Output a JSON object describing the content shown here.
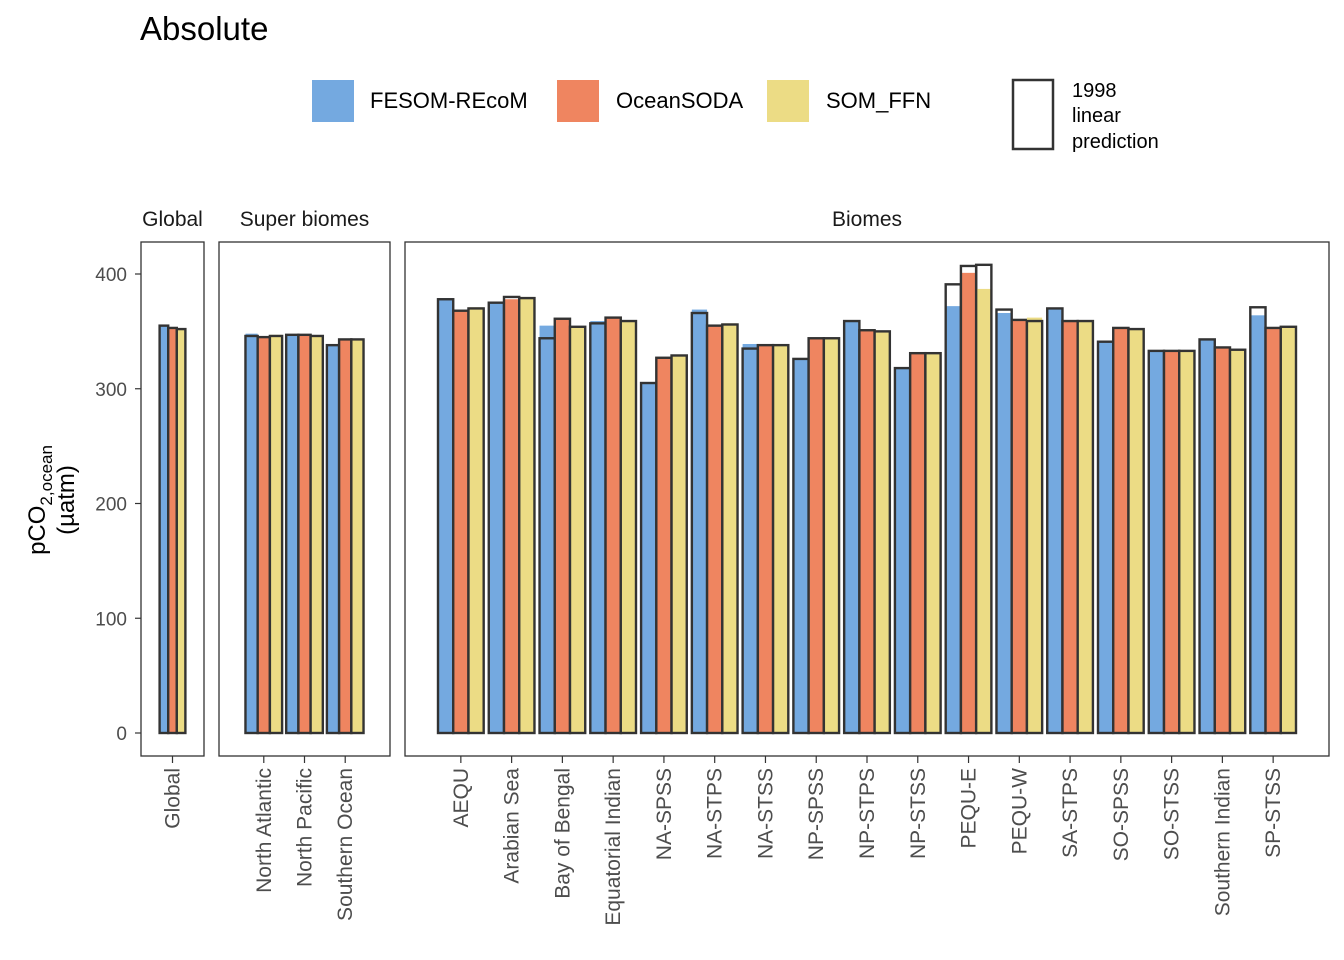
{
  "chart_data": {
    "type": "bar",
    "title": "Absolute",
    "ylabel": "pCO",
    "ylabel_subscript": "2,ocean",
    "yunit": "(µatm)",
    "ylim": [
      0,
      400
    ],
    "yticks": [
      "0",
      "100",
      "200",
      "300",
      "400"
    ],
    "legend_prediction_lines": [
      "1998",
      "linear",
      "prediction"
    ],
    "colors": {
      "FESOM-REcoM": "#74a9e0",
      "OceanSODA": "#ef8560",
      "SOM_FFN": "#ecdc85",
      "outline": "#333333"
    },
    "series": [
      {
        "name": "FESOM-REcoM"
      },
      {
        "name": "OceanSODA"
      },
      {
        "name": "SOM_FFN"
      }
    ],
    "panels": [
      {
        "label": "Global",
        "categories": [
          "Global"
        ],
        "values": [
          [
            355,
            353,
            352
          ]
        ],
        "prediction": [
          [
            355,
            353,
            352
          ]
        ]
      },
      {
        "label": "Super biomes",
        "categories": [
          "North Atlantic",
          "North Pacific",
          "Southern Ocean"
        ],
        "values": [
          [
            348,
            345,
            347
          ],
          [
            347,
            347,
            346
          ],
          [
            338,
            343,
            343
          ]
        ],
        "prediction": [
          [
            346,
            345,
            346
          ],
          [
            347,
            347,
            346
          ],
          [
            338,
            343,
            343
          ]
        ]
      },
      {
        "label": "Biomes",
        "categories": [
          "AEQU",
          "Arabian Sea",
          "Bay of Bengal",
          "Equatorial Indian",
          "NA-SPSS",
          "NA-STPS",
          "NA-STSS",
          "NP-SPSS",
          "NP-STPS",
          "NP-STSS",
          "PEQU-E",
          "PEQU-W",
          "SA-STPS",
          "SO-SPSS",
          "SO-STSS",
          "Southern Indian",
          "SP-STSS"
        ],
        "values": [
          [
            379,
            368,
            371
          ],
          [
            375,
            378,
            380
          ],
          [
            355,
            361,
            354
          ],
          [
            359,
            362,
            359
          ],
          [
            305,
            327,
            329
          ],
          [
            369,
            355,
            357
          ],
          [
            339,
            338,
            338
          ],
          [
            326,
            344,
            344
          ],
          [
            359,
            351,
            350
          ],
          [
            318,
            331,
            331
          ],
          [
            372,
            401,
            387
          ],
          [
            366,
            360,
            362
          ],
          [
            370,
            359,
            359
          ],
          [
            341,
            353,
            352
          ],
          [
            333,
            333,
            333
          ],
          [
            343,
            336,
            334
          ],
          [
            364,
            353,
            354
          ]
        ],
        "prediction": [
          [
            378,
            368,
            370
          ],
          [
            375,
            380,
            379
          ],
          [
            344,
            361,
            354
          ],
          [
            357,
            362,
            359
          ],
          [
            305,
            327,
            329
          ],
          [
            366,
            355,
            356
          ],
          [
            335,
            338,
            338
          ],
          [
            326,
            344,
            344
          ],
          [
            359,
            351,
            350
          ],
          [
            318,
            331,
            331
          ],
          [
            391,
            407,
            408
          ],
          [
            369,
            360,
            359
          ],
          [
            370,
            359,
            359
          ],
          [
            341,
            353,
            352
          ],
          [
            333,
            333,
            333
          ],
          [
            343,
            336,
            334
          ],
          [
            371,
            353,
            354
          ]
        ]
      }
    ]
  }
}
